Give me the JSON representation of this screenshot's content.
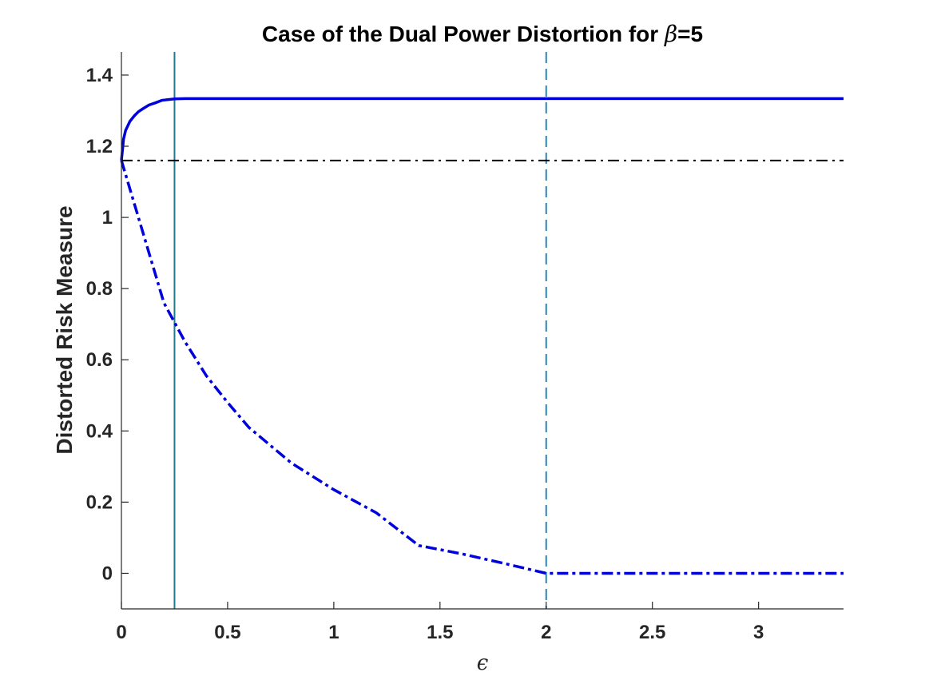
{
  "chart_data": {
    "type": "line",
    "title": {
      "text": "Case of the Dual Power Distortion for ",
      "symbol": "β",
      "suffix": "=5"
    },
    "xlabel": "ϵ",
    "ylabel": "Distorted Risk Measure",
    "xlim": [
      0,
      3.4
    ],
    "ylim": [
      -0.1,
      1.465
    ],
    "xticks": [
      0,
      0.5,
      1,
      1.5,
      2,
      2.5,
      3
    ],
    "xtick_labels": [
      "0",
      "0.5",
      "1",
      "1.5",
      "2",
      "2.5",
      "3"
    ],
    "yticks": [
      0,
      0.2,
      0.4,
      0.6,
      0.8,
      1,
      1.2,
      1.4
    ],
    "ytick_labels": [
      "0",
      "0.2",
      "0.4",
      "0.6",
      "0.8",
      "1",
      "1.2",
      "1.4"
    ],
    "grid": false,
    "series": [
      {
        "style": "solid",
        "color": "#0000dd",
        "x": [
          0,
          0.01,
          0.02,
          0.04,
          0.06,
          0.08,
          0.1,
          0.13,
          0.16,
          0.19,
          0.25,
          0.3,
          0.5,
          1.0,
          1.5,
          2.0,
          2.5,
          3.0,
          3.4
        ],
        "y": [
          1.16,
          1.22,
          1.245,
          1.27,
          1.285,
          1.297,
          1.305,
          1.316,
          1.322,
          1.329,
          1.333,
          1.334,
          1.334,
          1.334,
          1.334,
          1.334,
          1.334,
          1.334,
          1.334
        ]
      },
      {
        "style": "dashdot",
        "color": "#0000dd",
        "x": [
          0,
          0.05,
          0.1,
          0.2,
          0.3,
          0.4,
          0.5,
          0.6,
          0.8,
          1.0,
          1.2,
          1.4,
          1.6,
          1.8,
          2.0,
          2.2,
          2.6,
          3.0,
          3.4
        ],
        "y": [
          1.16,
          1.06,
          0.96,
          0.76,
          0.65,
          0.555,
          0.48,
          0.41,
          0.31,
          0.235,
          0.17,
          0.078,
          0.055,
          0.028,
          0.0,
          0.0,
          0.0,
          0.0,
          0.0
        ]
      },
      {
        "style": "dashdot-thin",
        "color": "#000000",
        "x": [
          0,
          3.4
        ],
        "y": [
          1.16,
          1.16
        ]
      }
    ],
    "vlines": [
      {
        "x": 0.25,
        "style": "solid",
        "color": "#1f7a8c"
      },
      {
        "x": 2.0,
        "style": "dashed",
        "color": "#2a88b8"
      }
    ]
  }
}
